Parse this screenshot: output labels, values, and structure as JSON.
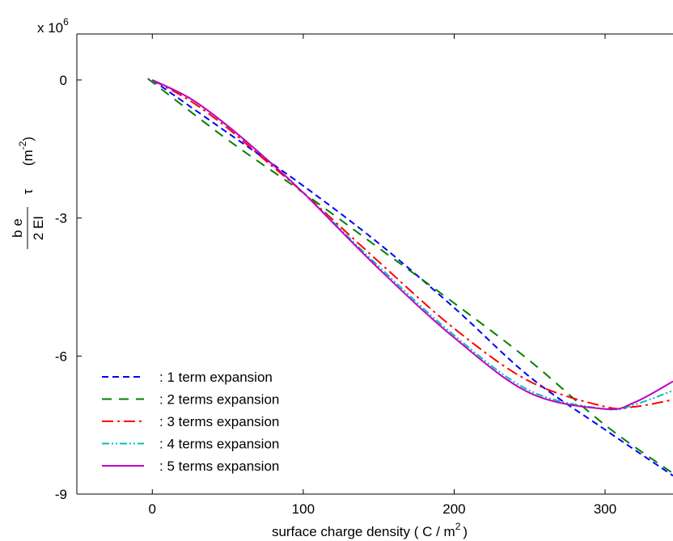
{
  "chart_data": {
    "type": "line",
    "title": "",
    "xlabel": "surface charge density ( C / m",
    "xlabel_sup": "2",
    "xlabel_tail": ")",
    "ylabel_fraction_numerator": "b e",
    "ylabel_fraction_denominator": "2 EI",
    "ylabel_symbol": "τ",
    "ylabel_unit": "(m",
    "ylabel_unit_sup": "-2",
    "ylabel_unit_tail": ")",
    "y_multiplier_base": "x 10",
    "y_multiplier_exp": "6",
    "xlim": [
      -50,
      345
    ],
    "ylim": [
      -9,
      1
    ],
    "x_ticks": [
      0,
      100,
      200,
      300
    ],
    "y_ticks": [
      0,
      -3,
      -6,
      -9
    ],
    "x_tick_labels": [
      "0",
      "100",
      "200",
      "300"
    ],
    "y_tick_labels": [
      "0",
      "-3",
      "-6",
      "-9"
    ],
    "grid": false,
    "legend_position": "bottom-left",
    "series": [
      {
        "name": ": 1 term expansion",
        "color": "#0000ff",
        "dash": "8,5",
        "x": [
          0,
          50,
          100,
          150,
          200,
          250,
          300,
          345
        ],
        "y": [
          0,
          -1.15,
          -2.3,
          -3.55,
          -4.95,
          -6.45,
          -7.6,
          -8.6
        ]
      },
      {
        "name": ": 2 terms expansion",
        "color": "#008000",
        "dash": "12,9",
        "x": [
          -3,
          50,
          100,
          150,
          200,
          250,
          300,
          345
        ],
        "y": [
          0.03,
          -1.3,
          -2.45,
          -3.65,
          -4.85,
          -6.1,
          -7.5,
          -8.55
        ]
      },
      {
        "name": ": 3 terms expansion",
        "color": "#ff0000",
        "dash": "14,5,3,5",
        "x": [
          0,
          25,
          50,
          75,
          100,
          150,
          200,
          250,
          300,
          320,
          345
        ],
        "y": [
          0,
          -0.45,
          -1.05,
          -1.75,
          -2.45,
          -3.95,
          -5.4,
          -6.55,
          -7.1,
          -7.1,
          -6.95
        ]
      },
      {
        "name": ": 4 terms expansion",
        "color": "#00c0c0",
        "dash": "9,3,2,3,2,3",
        "x": [
          0,
          25,
          50,
          75,
          100,
          150,
          200,
          250,
          300,
          320,
          345
        ],
        "y": [
          0,
          -0.4,
          -1.0,
          -1.7,
          -2.45,
          -4.05,
          -5.55,
          -6.75,
          -7.15,
          -7.05,
          -6.75
        ]
      },
      {
        "name": ": 5 terms expansion",
        "color": "#c000c0",
        "dash": "",
        "x": [
          0,
          25,
          50,
          75,
          100,
          150,
          200,
          250,
          300,
          320,
          345
        ],
        "y": [
          0,
          -0.4,
          -1.0,
          -1.7,
          -2.45,
          -4.1,
          -5.6,
          -6.8,
          -7.15,
          -7.0,
          -6.55
        ]
      }
    ]
  }
}
